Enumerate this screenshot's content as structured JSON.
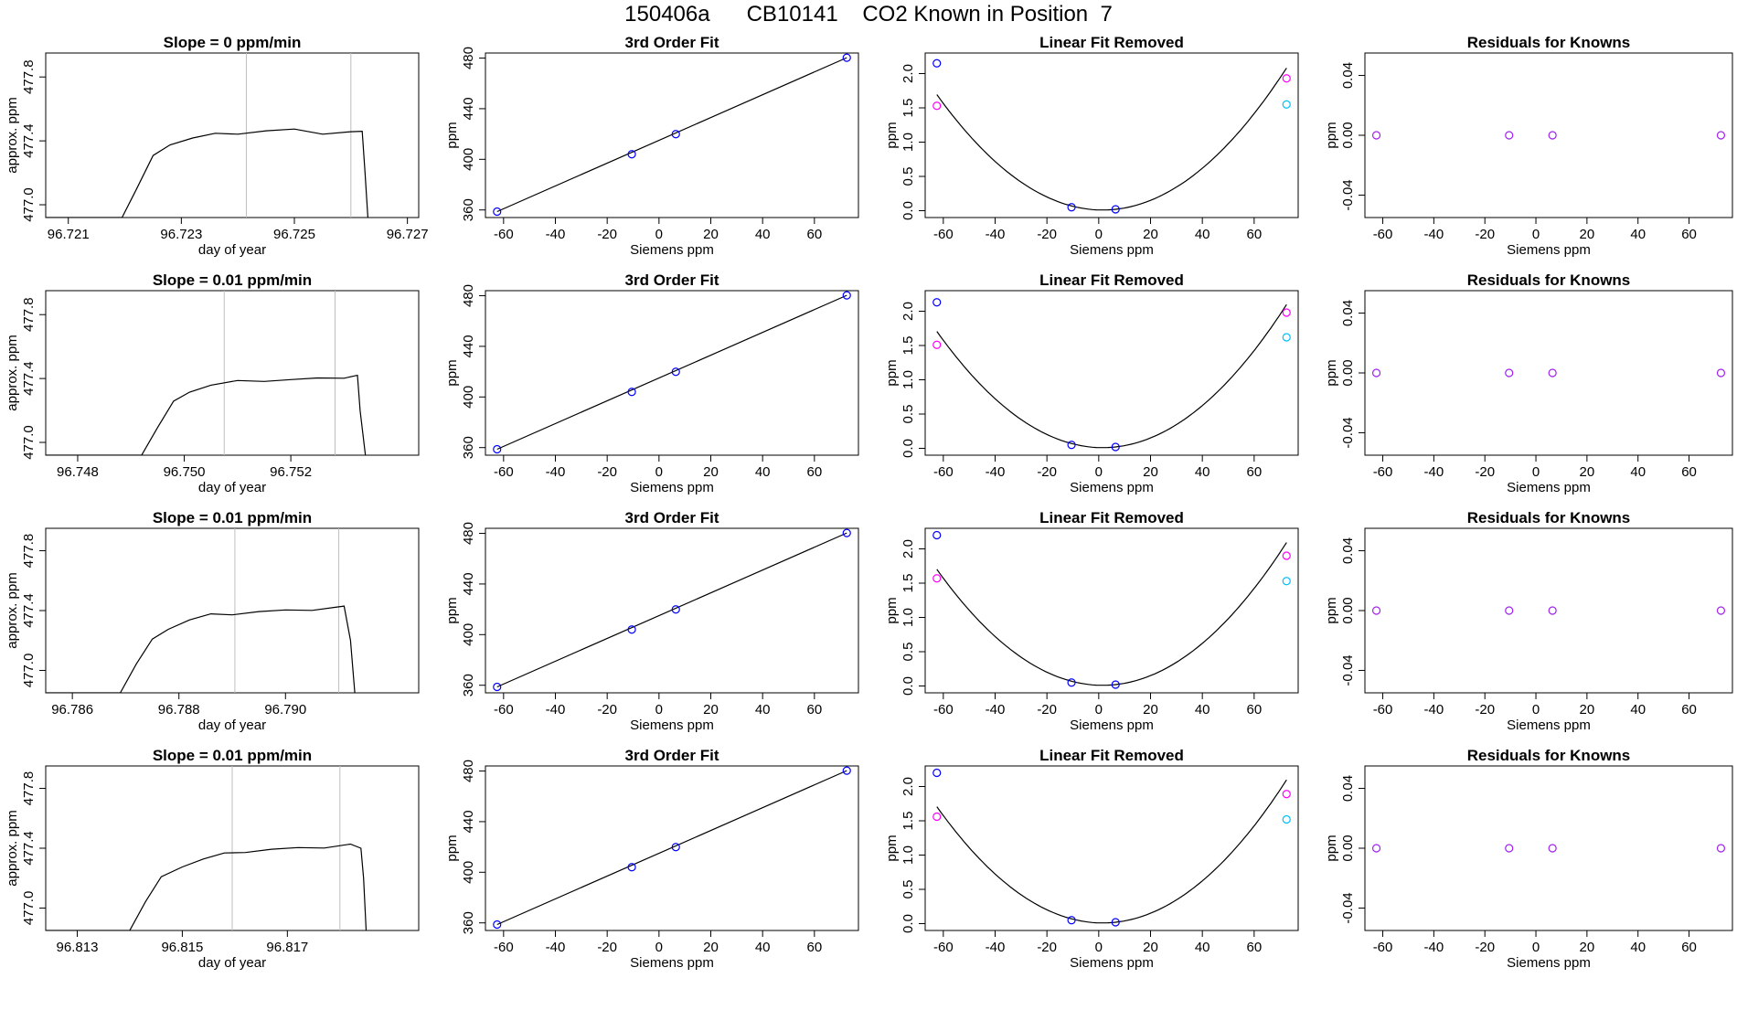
{
  "figure_title": "150406a      CB10141    CO2 Known in Position  7",
  "colors": {
    "line": "#000000",
    "vline": "#bebebe",
    "blue": "#0000ff",
    "magenta": "#ff00ff",
    "cyan": "#00bfff",
    "purple": "#a020f0"
  },
  "chart_data": [
    {
      "type": "line",
      "panel": "timeseries",
      "row": 0,
      "title": "Slope =  0  ppm/min",
      "xlabel": "day of year",
      "ylabel": "approx. ppm",
      "xlim": [
        96.7206,
        96.7272
      ],
      "ylim": [
        476.92,
        477.95
      ],
      "xticks": [
        96.721,
        96.723,
        96.725,
        96.727
      ],
      "yticks": [
        477.0,
        477.4,
        477.8
      ],
      "vlines": [
        96.72415,
        96.726
      ],
      "series": [
        {
          "name": "",
          "x": [
            96.72195,
            96.7222,
            96.7225,
            96.7228,
            96.7232,
            96.7236,
            96.724,
            96.7245,
            96.725,
            96.7255,
            96.726,
            96.7262,
            96.72625,
            96.7263
          ],
          "y": [
            476.92,
            477.1,
            477.3,
            477.38,
            477.42,
            477.44,
            477.45,
            477.46,
            477.47,
            477.45,
            477.45,
            477.46,
            477.2,
            476.92
          ]
        }
      ]
    },
    {
      "type": "scatter",
      "panel": "fit",
      "row": 0,
      "title": "3rd Order Fit",
      "xlabel": "Siemens ppm",
      "ylabel": "ppm",
      "xlim": [
        -67,
        77
      ],
      "ylim": [
        354,
        484
      ],
      "xticks": [
        -60,
        -40,
        -20,
        0,
        20,
        40,
        60
      ],
      "yticks": [
        360,
        400,
        440,
        480
      ],
      "x": [
        -62.5,
        -10.5,
        6.5,
        72.5
      ],
      "y": [
        358.7,
        404.0,
        419.9,
        480.3
      ],
      "fit_line": [
        [
          -62.5,
          358.7
        ],
        [
          72.5,
          480.3
        ]
      ]
    },
    {
      "type": "scatter",
      "panel": "linear_removed",
      "row": 0,
      "title": "Linear Fit Removed",
      "xlabel": "Siemens ppm",
      "ylabel": "ppm",
      "xlim": [
        -67,
        77
      ],
      "ylim": [
        -0.1,
        2.3
      ],
      "xticks": [
        -60,
        -40,
        -20,
        0,
        20,
        40,
        60
      ],
      "yticks": [
        0.0,
        0.5,
        1.0,
        1.5,
        2.0
      ],
      "curve": {
        "a": 0.000411,
        "vertex_x": 1.5
      },
      "series": [
        {
          "name": "",
          "color": "blue",
          "x": [
            -62.5,
            -10.5,
            6.5
          ],
          "y": [
            2.15,
            0.05,
            0.02
          ]
        },
        {
          "name": "",
          "color": "magenta",
          "x": [
            -62.5,
            72.5
          ],
          "y": [
            1.53,
            1.93
          ]
        },
        {
          "name": "",
          "color": "cyan",
          "x": [
            72.5
          ],
          "y": [
            1.55
          ]
        }
      ]
    },
    {
      "type": "scatter",
      "panel": "residuals",
      "row": 0,
      "title": "Residuals for Knowns",
      "xlabel": "Siemens ppm",
      "ylabel": "ppm",
      "xlim": [
        -67,
        77
      ],
      "ylim": [
        -0.055,
        0.055
      ],
      "xticks": [
        -60,
        -40,
        -20,
        0,
        20,
        40,
        60
      ],
      "yticks": [
        -0.04,
        0.0,
        0.04
      ],
      "x": [
        -62.5,
        -10.5,
        6.5,
        72.5
      ],
      "y": [
        0,
        0,
        0,
        0
      ]
    },
    {
      "type": "line",
      "panel": "timeseries",
      "row": 1,
      "title": "Slope =  0.01  ppm/min",
      "xlabel": "day of year",
      "ylabel": "approx. ppm",
      "xlim": [
        96.7474,
        96.7544
      ],
      "ylim": [
        476.92,
        477.95
      ],
      "xticks": [
        96.748,
        96.75,
        96.752
      ],
      "yticks": [
        477.0,
        477.4,
        477.8
      ],
      "vlines": [
        96.75075,
        96.75283
      ],
      "series": [
        {
          "name": "",
          "x": [
            96.7492,
            96.7495,
            96.7498,
            96.7501,
            96.7505,
            96.751,
            96.7515,
            96.752,
            96.7525,
            96.753,
            96.75325,
            96.7533,
            96.7534
          ],
          "y": [
            476.92,
            477.1,
            477.25,
            477.32,
            477.36,
            477.38,
            477.39,
            477.39,
            477.4,
            477.41,
            477.42,
            477.2,
            476.92
          ]
        }
      ]
    },
    {
      "type": "scatter",
      "panel": "fit",
      "row": 1,
      "title": "3rd Order Fit",
      "xlabel": "Siemens ppm",
      "ylabel": "ppm",
      "xlim": [
        -67,
        77
      ],
      "ylim": [
        354,
        484
      ],
      "xticks": [
        -60,
        -40,
        -20,
        0,
        20,
        40,
        60
      ],
      "yticks": [
        360,
        400,
        440,
        480
      ],
      "x": [
        -62.5,
        -10.5,
        6.5,
        72.5
      ],
      "y": [
        358.7,
        404.0,
        419.9,
        480.3
      ],
      "fit_line": [
        [
          -62.5,
          358.7
        ],
        [
          72.5,
          480.3
        ]
      ]
    },
    {
      "type": "scatter",
      "panel": "linear_removed",
      "row": 1,
      "title": "Linear Fit Removed",
      "xlabel": "Siemens ppm",
      "ylabel": "ppm",
      "xlim": [
        -67,
        77
      ],
      "ylim": [
        -0.1,
        2.3
      ],
      "xticks": [
        -60,
        -40,
        -20,
        0,
        20,
        40,
        60
      ],
      "yticks": [
        0.0,
        0.5,
        1.0,
        1.5,
        2.0
      ],
      "curve": {
        "a": 0.000414,
        "vertex_x": 1.5
      },
      "series": [
        {
          "name": "",
          "color": "blue",
          "x": [
            -62.5,
            -10.5,
            6.5
          ],
          "y": [
            2.13,
            0.05,
            0.02
          ]
        },
        {
          "name": "",
          "color": "magenta",
          "x": [
            -62.5,
            72.5
          ],
          "y": [
            1.51,
            1.98
          ]
        },
        {
          "name": "",
          "color": "cyan",
          "x": [
            72.5
          ],
          "y": [
            1.62
          ]
        }
      ]
    },
    {
      "type": "scatter",
      "panel": "residuals",
      "row": 1,
      "title": "Residuals for Knowns",
      "xlabel": "Siemens ppm",
      "ylabel": "ppm",
      "xlim": [
        -67,
        77
      ],
      "ylim": [
        -0.055,
        0.055
      ],
      "xticks": [
        -60,
        -40,
        -20,
        0,
        20,
        40,
        60
      ],
      "yticks": [
        -0.04,
        0.0,
        0.04
      ],
      "x": [
        -62.5,
        -10.5,
        6.5,
        72.5
      ],
      "y": [
        0,
        0,
        0,
        0
      ]
    },
    {
      "type": "line",
      "panel": "timeseries",
      "row": 2,
      "title": "Slope =  0.01  ppm/min",
      "xlabel": "day of year",
      "ylabel": "approx. ppm",
      "xlim": [
        96.7855,
        96.7925
      ],
      "ylim": [
        476.85,
        477.95
      ],
      "xticks": [
        96.786,
        96.788,
        96.79
      ],
      "yticks": [
        477.0,
        477.4,
        477.8
      ],
      "vlines": [
        96.78905,
        96.791
      ],
      "series": [
        {
          "name": "",
          "x": [
            96.7869,
            96.7872,
            96.7875,
            96.7878,
            96.7882,
            96.7886,
            96.789,
            96.7895,
            96.79,
            96.7905,
            96.7911,
            96.79122,
            96.7913
          ],
          "y": [
            476.85,
            477.05,
            477.2,
            477.28,
            477.34,
            477.37,
            477.38,
            477.39,
            477.4,
            477.41,
            477.43,
            477.2,
            476.85
          ]
        }
      ]
    },
    {
      "type": "scatter",
      "panel": "fit",
      "row": 2,
      "title": "3rd Order Fit",
      "xlabel": "Siemens ppm",
      "ylabel": "ppm",
      "xlim": [
        -67,
        77
      ],
      "ylim": [
        354,
        484
      ],
      "xticks": [
        -60,
        -40,
        -20,
        0,
        20,
        40,
        60
      ],
      "yticks": [
        360,
        400,
        440,
        480
      ],
      "x": [
        -62.5,
        -10.5,
        6.5,
        72.5
      ],
      "y": [
        358.7,
        404.0,
        419.9,
        480.3
      ],
      "fit_line": [
        [
          -62.5,
          358.7
        ],
        [
          72.5,
          480.3
        ]
      ]
    },
    {
      "type": "scatter",
      "panel": "linear_removed",
      "row": 2,
      "title": "Linear Fit Removed",
      "xlabel": "Siemens ppm",
      "ylabel": "ppm",
      "xlim": [
        -67,
        77
      ],
      "ylim": [
        -0.1,
        2.3
      ],
      "xticks": [
        -60,
        -40,
        -20,
        0,
        20,
        40,
        60
      ],
      "yticks": [
        0.0,
        0.5,
        1.0,
        1.5,
        2.0
      ],
      "curve": {
        "a": 0.000413,
        "vertex_x": 1.5
      },
      "series": [
        {
          "name": "",
          "color": "blue",
          "x": [
            -62.5,
            -10.5,
            6.5
          ],
          "y": [
            2.2,
            0.05,
            0.02
          ]
        },
        {
          "name": "",
          "color": "magenta",
          "x": [
            -62.5,
            72.5
          ],
          "y": [
            1.57,
            1.9
          ]
        },
        {
          "name": "",
          "color": "cyan",
          "x": [
            72.5
          ],
          "y": [
            1.53
          ]
        }
      ]
    },
    {
      "type": "scatter",
      "panel": "residuals",
      "row": 2,
      "title": "Residuals for Knowns",
      "xlabel": "Siemens ppm",
      "ylabel": "ppm",
      "xlim": [
        -67,
        77
      ],
      "ylim": [
        -0.055,
        0.055
      ],
      "xticks": [
        -60,
        -40,
        -20,
        0,
        20,
        40,
        60
      ],
      "yticks": [
        -0.04,
        0.0,
        0.04
      ],
      "x": [
        -62.5,
        -10.5,
        6.5,
        72.5
      ],
      "y": [
        0,
        0,
        0,
        0
      ]
    },
    {
      "type": "line",
      "panel": "timeseries",
      "row": 3,
      "title": "Slope =  0.01  ppm/min",
      "xlabel": "day of year",
      "ylabel": "approx. ppm",
      "xlim": [
        96.8124,
        96.8195
      ],
      "ylim": [
        476.85,
        477.95
      ],
      "xticks": [
        96.813,
        96.815,
        96.817
      ],
      "yticks": [
        477.0,
        477.4,
        477.8
      ],
      "vlines": [
        96.81595,
        96.818
      ],
      "series": [
        {
          "name": "",
          "x": [
            96.814,
            96.8143,
            96.8146,
            96.815,
            96.8154,
            96.8158,
            96.8162,
            96.8167,
            96.8172,
            96.8177,
            96.8182,
            96.8184,
            96.81845,
            96.8185
          ],
          "y": [
            476.85,
            477.05,
            477.2,
            477.28,
            477.33,
            477.36,
            477.38,
            477.39,
            477.4,
            477.41,
            477.42,
            477.4,
            477.2,
            476.85
          ]
        }
      ]
    },
    {
      "type": "scatter",
      "panel": "fit",
      "row": 3,
      "title": "3rd Order Fit",
      "xlabel": "Siemens ppm",
      "ylabel": "ppm",
      "xlim": [
        -67,
        77
      ],
      "ylim": [
        354,
        484
      ],
      "xticks": [
        -60,
        -40,
        -20,
        0,
        20,
        40,
        60
      ],
      "yticks": [
        360,
        400,
        440,
        480
      ],
      "x": [
        -62.5,
        -10.5,
        6.5,
        72.5
      ],
      "y": [
        358.7,
        404.0,
        419.9,
        480.3
      ],
      "fit_line": [
        [
          -62.5,
          358.7
        ],
        [
          72.5,
          480.3
        ]
      ]
    },
    {
      "type": "scatter",
      "panel": "linear_removed",
      "row": 3,
      "title": "Linear Fit Removed",
      "xlabel": "Siemens ppm",
      "ylabel": "ppm",
      "xlim": [
        -67,
        77
      ],
      "ylim": [
        -0.1,
        2.3
      ],
      "xticks": [
        -60,
        -40,
        -20,
        0,
        20,
        40,
        60
      ],
      "yticks": [
        0.0,
        0.5,
        1.0,
        1.5,
        2.0
      ],
      "curve": {
        "a": 0.000414,
        "vertex_x": 1.5
      },
      "series": [
        {
          "name": "",
          "color": "blue",
          "x": [
            -62.5,
            -10.5,
            6.5
          ],
          "y": [
            2.2,
            0.05,
            0.02
          ]
        },
        {
          "name": "",
          "color": "magenta",
          "x": [
            -62.5,
            72.5
          ],
          "y": [
            1.56,
            1.89
          ]
        },
        {
          "name": "",
          "color": "cyan",
          "x": [
            72.5
          ],
          "y": [
            1.52
          ]
        }
      ]
    },
    {
      "type": "scatter",
      "panel": "residuals",
      "row": 3,
      "title": "Residuals for Knowns",
      "xlabel": "Siemens ppm",
      "ylabel": "ppm",
      "xlim": [
        -67,
        77
      ],
      "ylim": [
        -0.055,
        0.055
      ],
      "xticks": [
        -60,
        -40,
        -20,
        0,
        20,
        40,
        60
      ],
      "yticks": [
        -0.04,
        0.0,
        0.04
      ],
      "x": [
        -62.5,
        -10.5,
        6.5,
        72.5
      ],
      "y": [
        0,
        0,
        0,
        0
      ]
    }
  ]
}
